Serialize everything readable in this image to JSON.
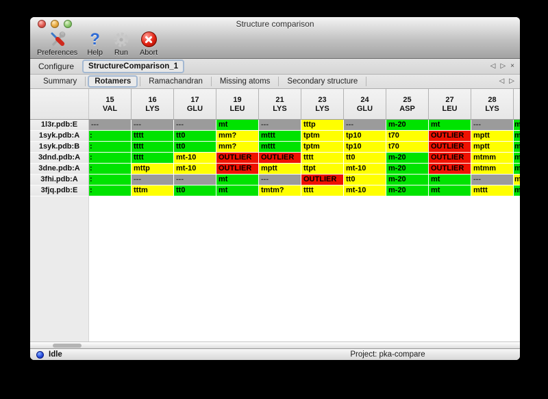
{
  "window": {
    "title": "Structure comparison"
  },
  "toolbar": {
    "buttons": [
      {
        "label": "Preferences",
        "icon": "tools-icon"
      },
      {
        "label": "Help",
        "icon": "help-icon"
      },
      {
        "label": "Run",
        "icon": "gear-icon"
      },
      {
        "label": "Abort",
        "icon": "abort-icon"
      }
    ]
  },
  "configure": {
    "label": "Configure",
    "value": "StructureComparison_1",
    "nav_back": "◁",
    "nav_fwd": "▷",
    "nav_close": "×"
  },
  "tabs": {
    "items": [
      "Summary",
      "Rotamers",
      "Ramachandran",
      "Missing atoms",
      "Secondary structure"
    ],
    "selected": "Rotamers",
    "nav_back": "◁",
    "nav_fwd": "▷"
  },
  "table": {
    "columns": [
      {
        "num": "15",
        "res": "VAL"
      },
      {
        "num": "16",
        "res": "LYS"
      },
      {
        "num": "17",
        "res": "GLU"
      },
      {
        "num": "19",
        "res": "LEU"
      },
      {
        "num": "21",
        "res": "LYS"
      },
      {
        "num": "23",
        "res": "LYS"
      },
      {
        "num": "24",
        "res": "GLU"
      },
      {
        "num": "25",
        "res": "ASP"
      },
      {
        "num": "27",
        "res": "LEU"
      },
      {
        "num": "28",
        "res": "LYS"
      }
    ],
    "colors": {
      "green": "#00e300",
      "yellow": "#ffff00",
      "red": "#ee1100",
      "na": "#9b9b9b"
    },
    "clip_mark": ":",
    "edge_clip_text": "m",
    "rows": [
      {
        "label": "1l3r.pdb:E",
        "edge": "green",
        "cells": [
          {
            "t": "---",
            "c": "na"
          },
          {
            "t": "---",
            "c": "na"
          },
          {
            "t": "---",
            "c": "na"
          },
          {
            "t": "mt",
            "c": "green"
          },
          {
            "t": "---",
            "c": "na"
          },
          {
            "t": "tttp",
            "c": "yellow"
          },
          {
            "t": "---",
            "c": "na"
          },
          {
            "t": "m-20",
            "c": "green"
          },
          {
            "t": "mt",
            "c": "green"
          },
          {
            "t": "---",
            "c": "na"
          }
        ]
      },
      {
        "label": "1syk.pdb:A",
        "edge": "green",
        "cells": [
          {
            "t": "",
            "c": "green",
            "m": 1
          },
          {
            "t": "tttt",
            "c": "green"
          },
          {
            "t": "tt0",
            "c": "green"
          },
          {
            "t": "mm?",
            "c": "yellow"
          },
          {
            "t": "mttt",
            "c": "green"
          },
          {
            "t": "tptm",
            "c": "yellow"
          },
          {
            "t": "tp10",
            "c": "yellow"
          },
          {
            "t": "t70",
            "c": "yellow"
          },
          {
            "t": "OUTLIER",
            "c": "red"
          },
          {
            "t": "mptt",
            "c": "yellow"
          }
        ]
      },
      {
        "label": "1syk.pdb:B",
        "edge": "green",
        "cells": [
          {
            "t": "",
            "c": "green",
            "m": 1
          },
          {
            "t": "tttt",
            "c": "green"
          },
          {
            "t": "tt0",
            "c": "green"
          },
          {
            "t": "mm?",
            "c": "yellow"
          },
          {
            "t": "mttt",
            "c": "green"
          },
          {
            "t": "tptm",
            "c": "yellow"
          },
          {
            "t": "tp10",
            "c": "yellow"
          },
          {
            "t": "t70",
            "c": "yellow"
          },
          {
            "t": "OUTLIER",
            "c": "red"
          },
          {
            "t": "mptt",
            "c": "yellow"
          }
        ]
      },
      {
        "label": "3dnd.pdb:A",
        "edge": "green",
        "cells": [
          {
            "t": "",
            "c": "green",
            "m": 1
          },
          {
            "t": "tttt",
            "c": "green"
          },
          {
            "t": "mt-10",
            "c": "yellow"
          },
          {
            "t": "OUTLIER",
            "c": "red"
          },
          {
            "t": "OUTLIER",
            "c": "red"
          },
          {
            "t": "tttt",
            "c": "yellow"
          },
          {
            "t": "tt0",
            "c": "yellow"
          },
          {
            "t": "m-20",
            "c": "green"
          },
          {
            "t": "OUTLIER",
            "c": "red"
          },
          {
            "t": "mtmm",
            "c": "yellow"
          }
        ]
      },
      {
        "label": "3dne.pdb:A",
        "edge": "green",
        "cells": [
          {
            "t": "",
            "c": "green",
            "m": 1
          },
          {
            "t": "mttp",
            "c": "yellow"
          },
          {
            "t": "mt-10",
            "c": "yellow"
          },
          {
            "t": "OUTLIER",
            "c": "red"
          },
          {
            "t": "mptt",
            "c": "yellow"
          },
          {
            "t": "ttpt",
            "c": "yellow"
          },
          {
            "t": "mt-10",
            "c": "yellow"
          },
          {
            "t": "m-20",
            "c": "green"
          },
          {
            "t": "OUTLIER",
            "c": "red"
          },
          {
            "t": "mtmm",
            "c": "yellow"
          }
        ]
      },
      {
        "label": "3fhi.pdb:A",
        "edge": "yellow",
        "cells": [
          {
            "t": "",
            "c": "green",
            "m": 1
          },
          {
            "t": "---",
            "c": "na"
          },
          {
            "t": "---",
            "c": "na"
          },
          {
            "t": "mt",
            "c": "green"
          },
          {
            "t": "---",
            "c": "na"
          },
          {
            "t": "OUTLIER",
            "c": "red"
          },
          {
            "t": "tt0",
            "c": "yellow"
          },
          {
            "t": "m-20",
            "c": "green"
          },
          {
            "t": "mt",
            "c": "green"
          },
          {
            "t": "---",
            "c": "na"
          }
        ]
      },
      {
        "label": "3fjq.pdb:E",
        "edge": "green",
        "cells": [
          {
            "t": "",
            "c": "green",
            "m": 1
          },
          {
            "t": "tttm",
            "c": "yellow"
          },
          {
            "t": "tt0",
            "c": "green"
          },
          {
            "t": "mt",
            "c": "green"
          },
          {
            "t": "tmtm?",
            "c": "yellow"
          },
          {
            "t": "tttt",
            "c": "yellow"
          },
          {
            "t": "mt-10",
            "c": "yellow"
          },
          {
            "t": "m-20",
            "c": "green"
          },
          {
            "t": "mt",
            "c": "green"
          },
          {
            "t": "mttt",
            "c": "yellow"
          }
        ]
      }
    ]
  },
  "statusbar": {
    "status": "Idle",
    "project": "Project: pka-compare"
  }
}
